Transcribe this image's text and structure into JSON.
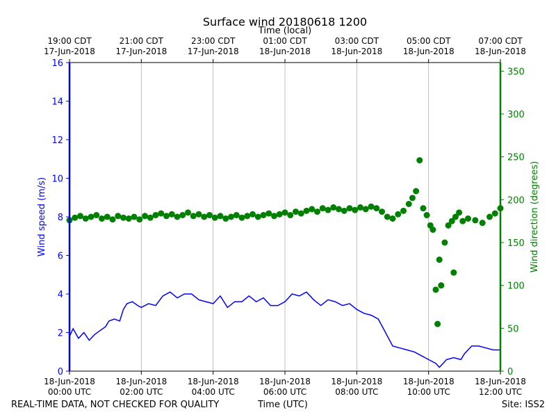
{
  "chart_data": {
    "type": "line",
    "title": "Surface wind 20180618 1200",
    "top_axis_label": "Time (local)",
    "xlabel": "Time (UTC)",
    "ylabel": "Wind speed (m/s)",
    "y2label": "Wind direction (degrees)",
    "x_range_hours_utc": [
      0,
      12
    ],
    "ylim": [
      0,
      16
    ],
    "y2lim": [
      0,
      360
    ],
    "grid": "vertical-lines-at-bottom-ticks",
    "bottom_ticks": [
      {
        "hour": 0,
        "line1": "18-Jun-2018",
        "line2": "00:00 UTC"
      },
      {
        "hour": 2,
        "line1": "18-Jun-2018",
        "line2": "02:00 UTC"
      },
      {
        "hour": 4,
        "line1": "18-Jun-2018",
        "line2": "04:00 UTC"
      },
      {
        "hour": 6,
        "line1": "18-Jun-2018",
        "line2": "06:00 UTC"
      },
      {
        "hour": 8,
        "line1": "18-Jun-2018",
        "line2": "08:00 UTC"
      },
      {
        "hour": 10,
        "line1": "18-Jun-2018",
        "line2": "10:00 UTC"
      },
      {
        "hour": 12,
        "line1": "18-Jun-2018",
        "line2": "12:00 UTC"
      }
    ],
    "top_ticks": [
      {
        "hour": 0,
        "line1": "19:00 CDT",
        "line2": "17-Jun-2018"
      },
      {
        "hour": 2,
        "line1": "21:00 CDT",
        "line2": "17-Jun-2018"
      },
      {
        "hour": 4,
        "line1": "23:00 CDT",
        "line2": "17-Jun-2018"
      },
      {
        "hour": 6,
        "line1": "01:00 CDT",
        "line2": "18-Jun-2018"
      },
      {
        "hour": 8,
        "line1": "03:00 CDT",
        "line2": "18-Jun-2018"
      },
      {
        "hour": 10,
        "line1": "05:00 CDT",
        "line2": "18-Jun-2018"
      },
      {
        "hour": 12,
        "line1": "07:00 CDT",
        "line2": "18-Jun-2018"
      }
    ],
    "y_ticks": [
      0,
      2,
      4,
      6,
      8,
      10,
      12,
      14,
      16
    ],
    "y2_ticks": [
      0,
      50,
      100,
      150,
      200,
      250,
      300,
      350
    ],
    "series": [
      {
        "name": "Wind speed",
        "axis": "left",
        "color": "#0000ff",
        "style": "line",
        "points": [
          [
            0,
            1.8
          ],
          [
            0.1,
            2.2
          ],
          [
            0.25,
            1.7
          ],
          [
            0.4,
            2.0
          ],
          [
            0.55,
            1.6
          ],
          [
            0.7,
            1.9
          ],
          [
            0.85,
            2.1
          ],
          [
            1.0,
            2.3
          ],
          [
            1.1,
            2.6
          ],
          [
            1.25,
            2.7
          ],
          [
            1.4,
            2.6
          ],
          [
            1.5,
            3.2
          ],
          [
            1.6,
            3.5
          ],
          [
            1.75,
            3.6
          ],
          [
            1.9,
            3.4
          ],
          [
            2.0,
            3.3
          ],
          [
            2.2,
            3.5
          ],
          [
            2.4,
            3.4
          ],
          [
            2.6,
            3.9
          ],
          [
            2.8,
            4.1
          ],
          [
            3.0,
            3.8
          ],
          [
            3.2,
            4.0
          ],
          [
            3.4,
            4.0
          ],
          [
            3.6,
            3.7
          ],
          [
            3.8,
            3.6
          ],
          [
            4.0,
            3.5
          ],
          [
            4.2,
            3.9
          ],
          [
            4.4,
            3.3
          ],
          [
            4.6,
            3.6
          ],
          [
            4.8,
            3.6
          ],
          [
            5.0,
            3.9
          ],
          [
            5.2,
            3.6
          ],
          [
            5.4,
            3.8
          ],
          [
            5.6,
            3.4
          ],
          [
            5.8,
            3.4
          ],
          [
            6.0,
            3.6
          ],
          [
            6.2,
            4.0
          ],
          [
            6.4,
            3.9
          ],
          [
            6.6,
            4.1
          ],
          [
            6.8,
            3.7
          ],
          [
            7.0,
            3.4
          ],
          [
            7.2,
            3.7
          ],
          [
            7.4,
            3.6
          ],
          [
            7.6,
            3.4
          ],
          [
            7.8,
            3.5
          ],
          [
            8.0,
            3.2
          ],
          [
            8.2,
            3.0
          ],
          [
            8.4,
            2.9
          ],
          [
            8.6,
            2.7
          ],
          [
            8.8,
            2.0
          ],
          [
            9.0,
            1.3
          ],
          [
            9.2,
            1.2
          ],
          [
            9.4,
            1.1
          ],
          [
            9.6,
            1.0
          ],
          [
            9.8,
            0.8
          ],
          [
            10.0,
            0.6
          ],
          [
            10.2,
            0.4
          ],
          [
            10.3,
            0.2
          ],
          [
            10.5,
            0.6
          ],
          [
            10.7,
            0.7
          ],
          [
            10.9,
            0.6
          ],
          [
            11.0,
            0.9
          ],
          [
            11.2,
            1.3
          ],
          [
            11.4,
            1.3
          ],
          [
            11.6,
            1.2
          ],
          [
            11.8,
            1.1
          ],
          [
            12.0,
            1.1
          ]
        ]
      },
      {
        "name": "Wind direction",
        "axis": "right",
        "color": "#008000",
        "style": "markers",
        "points": [
          [
            0,
            176
          ],
          [
            0.15,
            179
          ],
          [
            0.3,
            181
          ],
          [
            0.45,
            178
          ],
          [
            0.6,
            180
          ],
          [
            0.75,
            182
          ],
          [
            0.9,
            178
          ],
          [
            1.05,
            180
          ],
          [
            1.2,
            177
          ],
          [
            1.35,
            181
          ],
          [
            1.5,
            179
          ],
          [
            1.65,
            178
          ],
          [
            1.8,
            180
          ],
          [
            1.95,
            177
          ],
          [
            2.1,
            181
          ],
          [
            2.25,
            179
          ],
          [
            2.4,
            182
          ],
          [
            2.55,
            184
          ],
          [
            2.7,
            181
          ],
          [
            2.85,
            183
          ],
          [
            3.0,
            180
          ],
          [
            3.15,
            182
          ],
          [
            3.3,
            185
          ],
          [
            3.45,
            181
          ],
          [
            3.6,
            183
          ],
          [
            3.75,
            180
          ],
          [
            3.9,
            182
          ],
          [
            4.05,
            179
          ],
          [
            4.2,
            181
          ],
          [
            4.35,
            178
          ],
          [
            4.5,
            180
          ],
          [
            4.65,
            182
          ],
          [
            4.8,
            179
          ],
          [
            4.95,
            181
          ],
          [
            5.1,
            183
          ],
          [
            5.25,
            180
          ],
          [
            5.4,
            182
          ],
          [
            5.55,
            184
          ],
          [
            5.7,
            181
          ],
          [
            5.85,
            183
          ],
          [
            6.0,
            185
          ],
          [
            6.15,
            182
          ],
          [
            6.3,
            186
          ],
          [
            6.45,
            184
          ],
          [
            6.6,
            187
          ],
          [
            6.75,
            189
          ],
          [
            6.9,
            186
          ],
          [
            7.05,
            190
          ],
          [
            7.2,
            188
          ],
          [
            7.35,
            191
          ],
          [
            7.5,
            189
          ],
          [
            7.65,
            187
          ],
          [
            7.8,
            190
          ],
          [
            7.95,
            188
          ],
          [
            8.1,
            191
          ],
          [
            8.25,
            189
          ],
          [
            8.4,
            192
          ],
          [
            8.55,
            190
          ],
          [
            8.7,
            186
          ],
          [
            8.85,
            180
          ],
          [
            9.0,
            178
          ],
          [
            9.15,
            183
          ],
          [
            9.3,
            187
          ],
          [
            9.45,
            195
          ],
          [
            9.55,
            202
          ],
          [
            9.65,
            210
          ],
          [
            9.75,
            246
          ],
          [
            9.85,
            190
          ],
          [
            9.95,
            182
          ],
          [
            10.05,
            170
          ],
          [
            10.12,
            165
          ],
          [
            10.2,
            95
          ],
          [
            10.25,
            55
          ],
          [
            10.3,
            130
          ],
          [
            10.35,
            100
          ],
          [
            10.45,
            150
          ],
          [
            10.55,
            170
          ],
          [
            10.65,
            175
          ],
          [
            10.7,
            115
          ],
          [
            10.75,
            180
          ],
          [
            10.85,
            185
          ],
          [
            10.95,
            175
          ],
          [
            11.1,
            178
          ],
          [
            11.3,
            176
          ],
          [
            11.5,
            173
          ],
          [
            11.7,
            180
          ],
          [
            11.85,
            184
          ],
          [
            12.0,
            190
          ]
        ]
      }
    ]
  },
  "footer": {
    "left": "REAL-TIME DATA, NOT CHECKED FOR QUALITY",
    "center": "Time (UTC)",
    "right": "Site: ISS2"
  }
}
